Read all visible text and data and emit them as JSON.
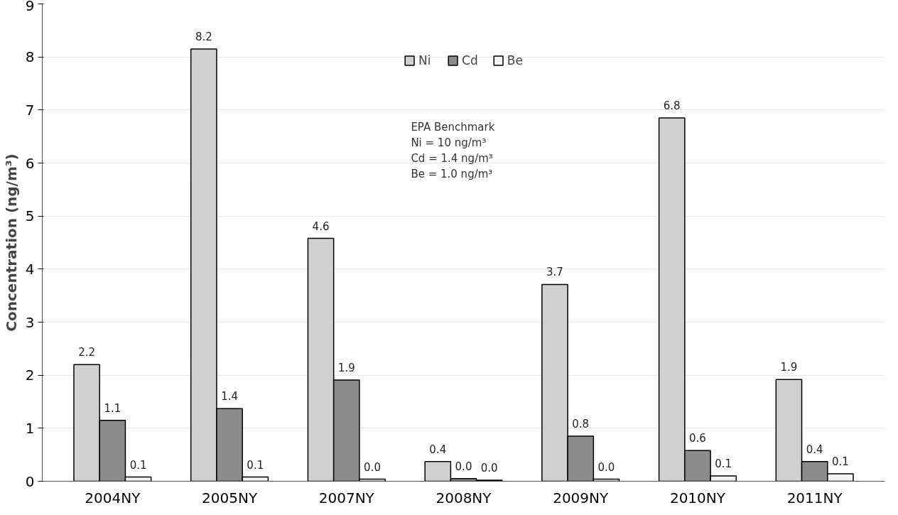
{
  "chart_data": {
    "type": "bar",
    "ylabel": "Concentration (ng/m³)",
    "categories": [
      "2004NY",
      "2005NY",
      "2007NY",
      "2008NY",
      "2009NY",
      "2010NY",
      "2011NY"
    ],
    "series": [
      {
        "name": "Ni",
        "color": "#d0d0d0",
        "values": [
          2.2,
          8.15,
          4.58,
          0.37,
          3.71,
          6.85,
          1.92
        ],
        "value_labels": [
          "2.2",
          "8.2",
          "4.6",
          "0.4",
          "3.7",
          "6.8",
          "1.9"
        ]
      },
      {
        "name": "Cd",
        "color": "#8c8c8c",
        "values": [
          1.15,
          1.37,
          1.91,
          0.05,
          0.85,
          0.58,
          0.37
        ],
        "value_labels": [
          "1.1",
          "1.4",
          "1.9",
          "0.0",
          "0.8",
          "0.6",
          "0.4"
        ]
      },
      {
        "name": "Be",
        "color": "#f2f2f2",
        "values": [
          0.08,
          0.08,
          0.04,
          0.02,
          0.04,
          0.1,
          0.14
        ],
        "value_labels": [
          "0.1",
          "0.1",
          "0.0",
          "0.0",
          "0.0",
          "0.1",
          "0.1"
        ]
      }
    ],
    "ylim": [
      0,
      9
    ],
    "yticks": [
      0,
      1,
      2,
      3,
      4,
      5,
      6,
      7,
      8,
      9
    ],
    "grid": "y",
    "legend": "top",
    "annotations": [
      "EPA Benchmark",
      "Ni = 10 ng/m³",
      "Cd = 1.4 ng/m³",
      "Be = 1.0 ng/m³"
    ]
  }
}
